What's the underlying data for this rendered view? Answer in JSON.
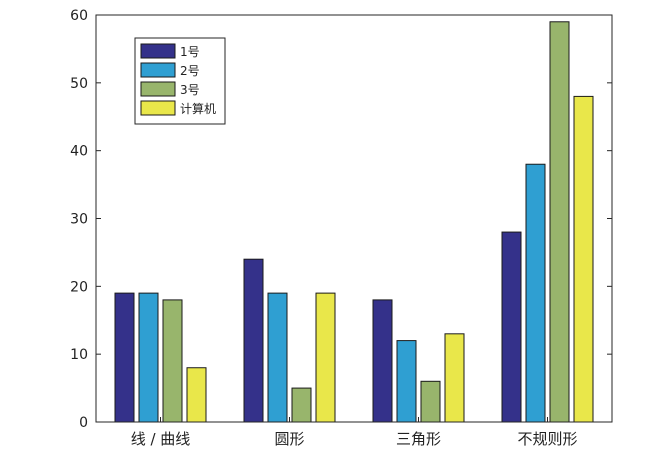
{
  "chart_data": {
    "type": "bar",
    "title": "",
    "xlabel": "",
    "ylabel": "",
    "categories": [
      "线 / 曲线",
      "圆形",
      "三角形",
      "不规则形"
    ],
    "series": [
      {
        "name": "1号",
        "color": "#34318a",
        "values": [
          19,
          24,
          18,
          28
        ]
      },
      {
        "name": "2号",
        "color": "#2f9fd2",
        "values": [
          19,
          19,
          12,
          38
        ]
      },
      {
        "name": "3号",
        "color": "#98b56c",
        "values": [
          18,
          5,
          6,
          59
        ]
      },
      {
        "name": "计算机",
        "color": "#e9e74a",
        "values": [
          8,
          19,
          13,
          48
        ]
      }
    ],
    "ylim": [
      0,
      60
    ],
    "yticks": [
      0,
      10,
      20,
      30,
      40,
      50,
      60
    ],
    "grid": false,
    "legend_position": "top-left"
  }
}
